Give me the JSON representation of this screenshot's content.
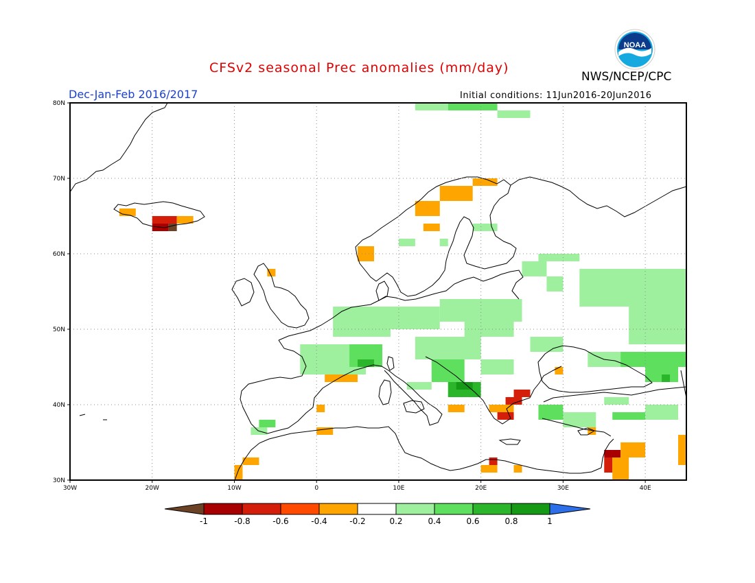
{
  "header": {
    "title": "CFSv2 seasonal Prec anomalies (mm/day)",
    "agency": "NWS/NCEP/CPC",
    "season": "Dec-Jan-Feb 2016/2017",
    "initial_conditions": "Initial conditions: 11Jun2016-20Jun2016",
    "logo_text": "NOAA"
  },
  "map": {
    "projection": "lat-lon",
    "lon_range": [
      -30,
      45
    ],
    "lat_range": [
      30,
      80
    ],
    "lon_ticks": [
      "30W",
      "20W",
      "10W",
      "0",
      "10E",
      "20E",
      "30E",
      "40E"
    ],
    "lat_ticks": [
      "30N",
      "40N",
      "50N",
      "60N",
      "70N",
      "80N"
    ],
    "grid": "dotted"
  },
  "colorbar": {
    "labels": [
      "-1",
      "-0.8",
      "-0.6",
      "-0.4",
      "-0.2",
      "0.2",
      "0.4",
      "0.6",
      "0.8",
      "1"
    ],
    "colors": {
      "below_min": "#6b4226",
      "bins": [
        "#a80000",
        "#d41e0a",
        "#ff4a00",
        "#ffa500",
        "#ffffff",
        "#9ef09e",
        "#5ee05e",
        "#2bb52b",
        "#169a16"
      ],
      "above_max": "#2c6fe8"
    }
  },
  "chart_data": {
    "type": "heatmap",
    "title": "CFSv2 seasonal Prec anomalies (mm/day)",
    "units": "mm/day",
    "bins": [
      -1,
      -0.8,
      -0.6,
      -0.4,
      -0.2,
      0.2,
      0.4,
      0.6,
      0.8,
      1
    ],
    "cells": [
      {
        "lon": [
          -20,
          -17
        ],
        "lat": [
          64,
          65
        ],
        "value": -0.7
      },
      {
        "lon": [
          -17,
          -15
        ],
        "lat": [
          64,
          65
        ],
        "value": -0.3
      },
      {
        "lon": [
          -20,
          -18
        ],
        "lat": [
          63,
          64
        ],
        "value": -0.9
      },
      {
        "lon": [
          -18,
          -17
        ],
        "lat": [
          63,
          64
        ],
        "value": -1.1
      },
      {
        "lon": [
          -24,
          -22
        ],
        "lat": [
          65,
          66
        ],
        "value": -0.3
      },
      {
        "lon": [
          5,
          7
        ],
        "lat": [
          59,
          61
        ],
        "value": -0.3
      },
      {
        "lon": [
          12,
          15
        ],
        "lat": [
          65,
          67
        ],
        "value": -0.3
      },
      {
        "lon": [
          15,
          19
        ],
        "lat": [
          67,
          69
        ],
        "value": -0.3
      },
      {
        "lon": [
          19,
          22
        ],
        "lat": [
          69,
          70
        ],
        "value": -0.3
      },
      {
        "lon": [
          13,
          15
        ],
        "lat": [
          63,
          64
        ],
        "value": -0.3
      },
      {
        "lon": [
          -6,
          -5
        ],
        "lat": [
          57,
          58
        ],
        "value": -0.3
      },
      {
        "lon": [
          1,
          5
        ],
        "lat": [
          43,
          44
        ],
        "value": -0.3
      },
      {
        "lon": [
          0,
          1
        ],
        "lat": [
          39,
          40
        ],
        "value": -0.3
      },
      {
        "lon": [
          0,
          2
        ],
        "lat": [
          36,
          37
        ],
        "value": -0.3
      },
      {
        "lon": [
          -9,
          -7
        ],
        "lat": [
          32,
          33
        ],
        "value": -0.3
      },
      {
        "lon": [
          -10,
          -9
        ],
        "lat": [
          30,
          32
        ],
        "value": -0.3
      },
      {
        "lon": [
          16,
          18
        ],
        "lat": [
          39,
          40
        ],
        "value": -0.3
      },
      {
        "lon": [
          21,
          24
        ],
        "lat": [
          39,
          40
        ],
        "value": -0.3
      },
      {
        "lon": [
          22,
          24
        ],
        "lat": [
          38,
          39
        ],
        "value": -0.7
      },
      {
        "lon": [
          23,
          25
        ],
        "lat": [
          40,
          41
        ],
        "value": -0.7
      },
      {
        "lon": [
          24,
          26
        ],
        "lat": [
          41,
          42
        ],
        "value": -0.7
      },
      {
        "lon": [
          20,
          22
        ],
        "lat": [
          31,
          32
        ],
        "value": -0.3
      },
      {
        "lon": [
          21,
          22
        ],
        "lat": [
          32,
          33
        ],
        "value": -0.7
      },
      {
        "lon": [
          24,
          25
        ],
        "lat": [
          31,
          32
        ],
        "value": -0.3
      },
      {
        "lon": [
          33,
          34
        ],
        "lat": [
          36,
          37
        ],
        "value": -0.3
      },
      {
        "lon": [
          35,
          37
        ],
        "lat": [
          33,
          34
        ],
        "value": -0.9
      },
      {
        "lon": [
          35,
          36
        ],
        "lat": [
          31,
          33
        ],
        "value": -0.7
      },
      {
        "lon": [
          36,
          38
        ],
        "lat": [
          30,
          33
        ],
        "value": -0.3
      },
      {
        "lon": [
          37,
          40
        ],
        "lat": [
          33,
          35
        ],
        "value": -0.3
      },
      {
        "lon": [
          44,
          45
        ],
        "lat": [
          32,
          36
        ],
        "value": -0.3
      },
      {
        "lon": [
          29,
          30
        ],
        "lat": [
          44,
          45
        ],
        "value": -0.3
      },
      {
        "lon": [
          12,
          16
        ],
        "lat": [
          79,
          80
        ],
        "value": 0.3
      },
      {
        "lon": [
          16,
          22
        ],
        "lat": [
          79,
          80
        ],
        "value": 0.5
      },
      {
        "lon": [
          22,
          26
        ],
        "lat": [
          78,
          79
        ],
        "value": 0.3
      },
      {
        "lon": [
          19,
          22
        ],
        "lat": [
          63,
          64
        ],
        "value": 0.3
      },
      {
        "lon": [
          10,
          12
        ],
        "lat": [
          61,
          62
        ],
        "value": 0.3
      },
      {
        "lon": [
          15,
          16
        ],
        "lat": [
          61,
          62
        ],
        "value": 0.3
      },
      {
        "lon": [
          27,
          32
        ],
        "lat": [
          59,
          60
        ],
        "value": 0.3
      },
      {
        "lon": [
          25,
          28
        ],
        "lat": [
          57,
          59
        ],
        "value": 0.3
      },
      {
        "lon": [
          28,
          30
        ],
        "lat": [
          55,
          57
        ],
        "value": 0.3
      },
      {
        "lon": [
          32,
          45
        ],
        "lat": [
          53,
          58
        ],
        "value": 0.3
      },
      {
        "lon": [
          38,
          45
        ],
        "lat": [
          48,
          53
        ],
        "value": 0.3
      },
      {
        "lon": [
          -2,
          6
        ],
        "lat": [
          44,
          48
        ],
        "value": 0.3
      },
      {
        "lon": [
          2,
          9
        ],
        "lat": [
          49,
          53
        ],
        "value": 0.3
      },
      {
        "lon": [
          4,
          8
        ],
        "lat": [
          45,
          48
        ],
        "value": 0.5
      },
      {
        "lon": [
          5,
          7
        ],
        "lat": [
          45,
          46
        ],
        "value": 0.7
      },
      {
        "lon": [
          7,
          15
        ],
        "lat": [
          50,
          53
        ],
        "value": 0.3
      },
      {
        "lon": [
          15,
          25
        ],
        "lat": [
          51,
          54
        ],
        "value": 0.3
      },
      {
        "lon": [
          18,
          24
        ],
        "lat": [
          49,
          51
        ],
        "value": 0.3
      },
      {
        "lon": [
          12,
          20
        ],
        "lat": [
          46,
          49
        ],
        "value": 0.3
      },
      {
        "lon": [
          14,
          18
        ],
        "lat": [
          43,
          46
        ],
        "value": 0.5
      },
      {
        "lon": [
          16,
          20
        ],
        "lat": [
          41,
          43
        ],
        "value": 0.7
      },
      {
        "lon": [
          17,
          19
        ],
        "lat": [
          42,
          43
        ],
        "value": 0.9
      },
      {
        "lon": [
          20,
          24
        ],
        "lat": [
          44,
          46
        ],
        "value": 0.3
      },
      {
        "lon": [
          26,
          30
        ],
        "lat": [
          47,
          49
        ],
        "value": 0.3
      },
      {
        "lon": [
          33,
          40
        ],
        "lat": [
          45,
          47
        ],
        "value": 0.3
      },
      {
        "lon": [
          37,
          45
        ],
        "lat": [
          45,
          47
        ],
        "value": 0.5
      },
      {
        "lon": [
          40,
          44
        ],
        "lat": [
          43,
          45
        ],
        "value": 0.5
      },
      {
        "lon": [
          42,
          43
        ],
        "lat": [
          43,
          44
        ],
        "value": 0.7
      },
      {
        "lon": [
          27,
          30
        ],
        "lat": [
          38,
          40
        ],
        "value": 0.5
      },
      {
        "lon": [
          30,
          34
        ],
        "lat": [
          37,
          39
        ],
        "value": 0.3
      },
      {
        "lon": [
          35,
          38
        ],
        "lat": [
          40,
          41
        ],
        "value": 0.3
      },
      {
        "lon": [
          36,
          40
        ],
        "lat": [
          38,
          39
        ],
        "value": 0.5
      },
      {
        "lon": [
          40,
          44
        ],
        "lat": [
          38,
          40
        ],
        "value": 0.3
      },
      {
        "lon": [
          11,
          14
        ],
        "lat": [
          42,
          43
        ],
        "value": 0.3
      },
      {
        "lon": [
          -7,
          -5
        ],
        "lat": [
          37,
          38
        ],
        "value": 0.5
      },
      {
        "lon": [
          -8,
          -6
        ],
        "lat": [
          36,
          37
        ],
        "value": 0.3
      }
    ]
  }
}
